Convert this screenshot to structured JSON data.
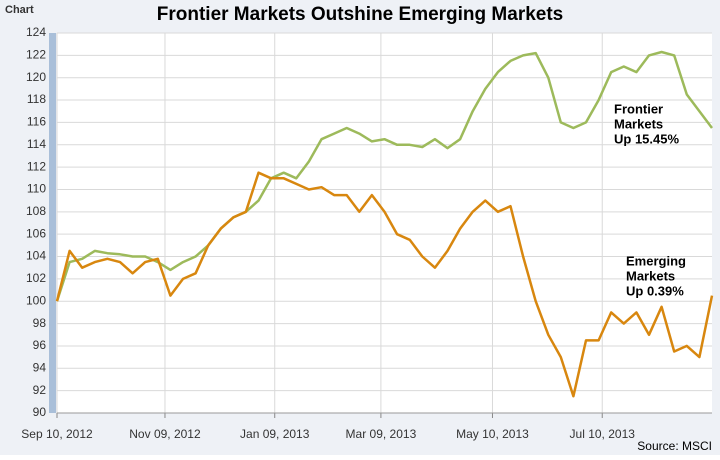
{
  "chart_data": {
    "type": "line",
    "corner_label": "Chart",
    "title": "Frontier Markets Outshine Emerging Markets",
    "source": "Source: MSCI",
    "x": [
      "2012-09-10",
      "2012-09-17",
      "2012-09-24",
      "2012-10-01",
      "2012-10-08",
      "2012-10-15",
      "2012-10-22",
      "2012-10-29",
      "2012-11-05",
      "2012-11-12",
      "2012-11-19",
      "2012-11-26",
      "2012-12-03",
      "2012-12-10",
      "2012-12-17",
      "2012-12-24",
      "2012-12-31",
      "2013-01-07",
      "2013-01-14",
      "2013-01-21",
      "2013-01-28",
      "2013-02-04",
      "2013-02-11",
      "2013-02-18",
      "2013-02-25",
      "2013-03-04",
      "2013-03-11",
      "2013-03-18",
      "2013-03-25",
      "2013-04-01",
      "2013-04-08",
      "2013-04-15",
      "2013-04-22",
      "2013-04-29",
      "2013-05-06",
      "2013-05-13",
      "2013-05-20",
      "2013-05-27",
      "2013-06-03",
      "2013-06-10",
      "2013-06-17",
      "2013-06-24",
      "2013-07-01",
      "2013-07-08",
      "2013-07-15",
      "2013-07-22",
      "2013-07-29",
      "2013-08-05",
      "2013-08-12",
      "2013-08-19",
      "2013-08-26",
      "2013-09-02",
      "2013-09-09"
    ],
    "series": [
      {
        "name": "Frontier Markets",
        "color": "#9dba5b",
        "values": [
          100,
          103.5,
          103.8,
          104.5,
          104.3,
          104.2,
          104,
          104,
          103.5,
          102.8,
          103.5,
          104,
          105,
          106.5,
          107.5,
          108,
          109,
          111,
          111.5,
          111,
          112.5,
          114.5,
          115,
          115.5,
          115,
          114.3,
          114.5,
          114,
          114,
          113.8,
          114.5,
          113.7,
          114.5,
          117,
          119,
          120.5,
          121.5,
          122,
          122.2,
          120,
          116,
          115.5,
          116,
          118,
          120.5,
          121,
          120.5,
          122,
          122.3,
          122,
          118.5,
          117,
          115.5
        ]
      },
      {
        "name": "Emerging Markets",
        "color": "#d8870f",
        "values": [
          100,
          104.5,
          103,
          103.5,
          103.8,
          103.5,
          102.5,
          103.5,
          103.8,
          100.5,
          102,
          102.5,
          105,
          106.5,
          107.5,
          108,
          111.5,
          111,
          111,
          110.5,
          110,
          110.2,
          109.5,
          109.5,
          108,
          109.5,
          108,
          106,
          105.5,
          104,
          103,
          104.5,
          106.5,
          108,
          109,
          108,
          108.5,
          104,
          100,
          97,
          95,
          91.5,
          96.5,
          96.5,
          99,
          98,
          99,
          97,
          99.5,
          95.5,
          96,
          95,
          100.5
        ]
      }
    ],
    "annotations": [
      {
        "lines": [
          "Frontier",
          "Markets",
          "Up 15.45%"
        ]
      },
      {
        "lines": [
          "Emerging",
          "Markets",
          "Up 0.39%"
        ]
      }
    ],
    "xlim": [
      "2012-09-10",
      "2013-09-09"
    ],
    "xticks": [
      {
        "value": "2012-09-10",
        "label": "Sep 10, 2012"
      },
      {
        "value": "2012-11-09",
        "label": "Nov 09, 2012"
      },
      {
        "value": "2013-01-09",
        "label": "Jan 09, 2013"
      },
      {
        "value": "2013-03-09",
        "label": "Mar 09, 2013"
      },
      {
        "value": "2013-05-10",
        "label": "May 10, 2013"
      },
      {
        "value": "2013-07-10",
        "label": "Jul 10, 2013"
      }
    ],
    "ylim": [
      90,
      124
    ],
    "yticks": [
      90,
      92,
      94,
      96,
      98,
      100,
      102,
      104,
      106,
      108,
      110,
      112,
      114,
      116,
      118,
      120,
      122,
      124
    ],
    "grid": true
  }
}
